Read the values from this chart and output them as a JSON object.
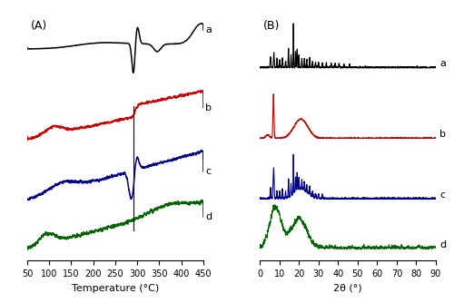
{
  "panel_A": {
    "label": "(A)",
    "xlabel": "Temperature (°C)",
    "xlim": [
      50,
      450
    ],
    "xticks": [
      50,
      100,
      150,
      200,
      250,
      300,
      350,
      400,
      450
    ],
    "colors": [
      "#000000",
      "#cc0000",
      "#00008b",
      "#006400"
    ],
    "labels": [
      "a",
      "b",
      "c",
      "d"
    ],
    "offsets": [
      1.0,
      0.62,
      0.28,
      0.0
    ],
    "scale": 0.28
  },
  "panel_B": {
    "label": "(B)",
    "xlabel": "2θ (°)",
    "xlim": [
      0,
      90
    ],
    "xticks": [
      0,
      10,
      20,
      30,
      40,
      50,
      60,
      70,
      80,
      90
    ],
    "colors": [
      "#000000",
      "#cc0000",
      "#00008b",
      "#006400"
    ],
    "labels": [
      "a",
      "b",
      "c",
      "d"
    ],
    "offsets": [
      0.9,
      0.55,
      0.25,
      0.0
    ],
    "scale": 0.22
  }
}
